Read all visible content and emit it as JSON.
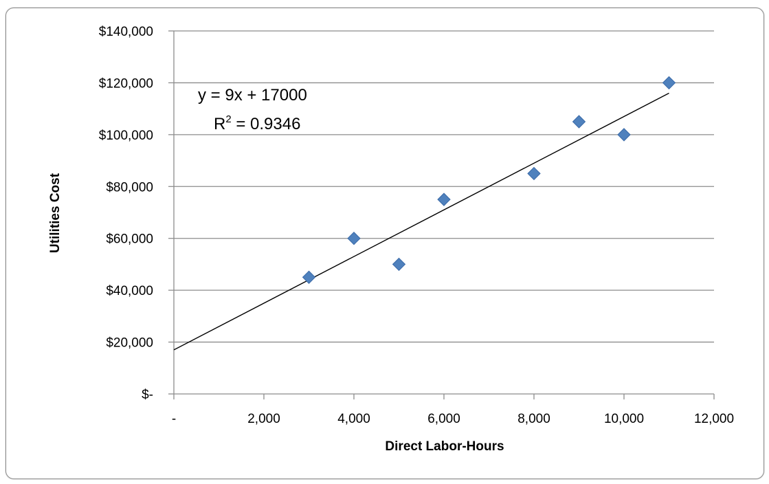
{
  "chart_data": {
    "type": "scatter",
    "title": "",
    "xlabel": "Direct Labor-Hours",
    "ylabel": "Utilities Cost",
    "xlim": [
      0,
      12000
    ],
    "ylim": [
      0,
      140000
    ],
    "x_ticks": [
      0,
      2000,
      4000,
      6000,
      8000,
      10000,
      12000
    ],
    "x_tick_labels": [
      "-",
      "2,000",
      "4,000",
      "6,000",
      "8,000",
      "10,000",
      "12,000"
    ],
    "y_ticks": [
      0,
      20000,
      40000,
      60000,
      80000,
      100000,
      120000,
      140000
    ],
    "y_tick_labels": [
      "$-",
      "$20,000",
      "$40,000",
      "$60,000",
      "$80,000",
      "$100,000",
      "$120,000",
      "$140,000"
    ],
    "grid": "horizontal",
    "legend": "none",
    "points": [
      {
        "x": 3000,
        "y": 45000
      },
      {
        "x": 4000,
        "y": 60000
      },
      {
        "x": 5000,
        "y": 50000
      },
      {
        "x": 6000,
        "y": 75000
      },
      {
        "x": 8000,
        "y": 85000
      },
      {
        "x": 9000,
        "y": 105000
      },
      {
        "x": 10000,
        "y": 100000
      },
      {
        "x": 11000,
        "y": 120000
      }
    ],
    "trendline": {
      "slope": 9,
      "intercept": 17000,
      "x_range": [
        0,
        11000
      ],
      "equation_label": "y = 9x + 17000",
      "r2_prefix": "R",
      "r2_sup": "2",
      "r2_value": " = 0.9346"
    },
    "colors": {
      "marker": "#4f81bd",
      "marker_stroke": "#3a6aa8",
      "trendline": "#000000",
      "gridline": "#8c8c8c",
      "axis": "#8c8c8c"
    }
  }
}
